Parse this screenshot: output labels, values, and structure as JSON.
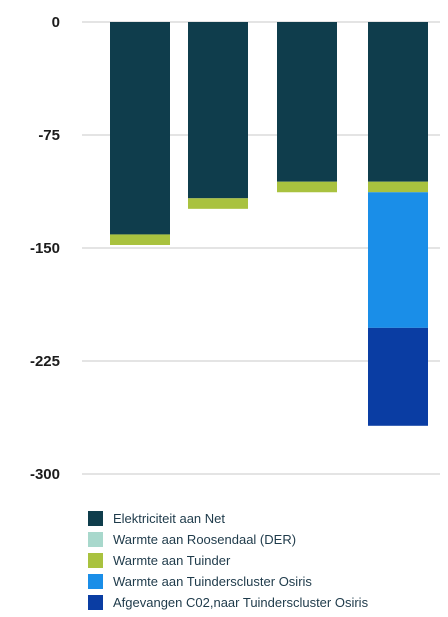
{
  "chart_data": {
    "type": "bar",
    "stacked": true,
    "categories": [
      "",
      "",
      "",
      ""
    ],
    "ylim": [
      -300,
      0
    ],
    "yticks": [
      0,
      -75,
      -150,
      -225,
      -300
    ],
    "grid": true,
    "legend_position": "bottom",
    "series": [
      {
        "name": "Elektriciteit aan Net",
        "color": "#0f3d4c",
        "values": [
          -141,
          -117,
          -106,
          -106
        ]
      },
      {
        "name": "Warmte aan Roosendaal (DER)",
        "color": "#a8d8cc",
        "values": [
          0,
          0,
          0,
          0
        ]
      },
      {
        "name": "Warmte aan Tuinder",
        "color": "#a9c23f",
        "values": [
          -7,
          -7,
          -7,
          -7
        ]
      },
      {
        "name": "Warmte aan Tuinderscluster Osiris",
        "color": "#1a8ee8",
        "values": [
          0,
          0,
          0,
          -90
        ]
      },
      {
        "name": "Afgevangen C02,naar Tuinderscluster Osiris",
        "color": "#0a3da3",
        "values": [
          0,
          0,
          0,
          -65
        ]
      }
    ]
  }
}
